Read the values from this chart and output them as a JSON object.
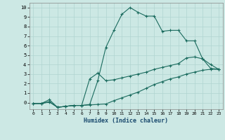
{
  "xlabel": "Humidex (Indice chaleur)",
  "background_color": "#cce8e4",
  "grid_color": "#b0d4d0",
  "line_color": "#1a6b5e",
  "xlim": [
    -0.5,
    23.5
  ],
  "ylim": [
    -0.7,
    10.5
  ],
  "xticks": [
    0,
    1,
    2,
    3,
    4,
    5,
    6,
    7,
    8,
    9,
    10,
    11,
    12,
    13,
    14,
    15,
    16,
    17,
    18,
    19,
    20,
    21,
    22,
    23
  ],
  "yticks": [
    0,
    1,
    2,
    3,
    4,
    5,
    6,
    7,
    8,
    9,
    10
  ],
  "line1_x": [
    0,
    1,
    2,
    3,
    4,
    5,
    6,
    7,
    8,
    9,
    10,
    11,
    12,
    13,
    14,
    15,
    16,
    17,
    18,
    19,
    20,
    21,
    22,
    23
  ],
  "line1_y": [
    -0.1,
    -0.1,
    0.3,
    -0.5,
    -0.4,
    -0.3,
    -0.3,
    -0.2,
    2.3,
    5.8,
    7.6,
    9.3,
    10.0,
    9.5,
    9.1,
    9.1,
    7.5,
    7.6,
    7.6,
    6.5,
    6.5,
    4.6,
    3.6,
    3.5
  ],
  "line2_x": [
    0,
    1,
    2,
    3,
    4,
    5,
    6,
    7,
    8,
    9,
    10,
    11,
    12,
    13,
    14,
    15,
    16,
    17,
    18,
    19,
    20,
    21,
    22,
    23
  ],
  "line2_y": [
    -0.1,
    -0.1,
    0.1,
    -0.5,
    -0.4,
    -0.3,
    -0.3,
    2.5,
    3.1,
    2.3,
    2.4,
    2.6,
    2.8,
    3.0,
    3.2,
    3.5,
    3.7,
    3.9,
    4.1,
    4.7,
    4.8,
    4.6,
    4.0,
    3.5
  ],
  "line3_x": [
    0,
    1,
    2,
    3,
    4,
    5,
    6,
    7,
    8,
    9,
    10,
    11,
    12,
    13,
    14,
    15,
    16,
    17,
    18,
    19,
    20,
    21,
    22,
    23
  ],
  "line3_y": [
    -0.1,
    -0.1,
    0.05,
    -0.5,
    -0.4,
    -0.3,
    -0.3,
    -0.25,
    -0.2,
    -0.15,
    0.2,
    0.5,
    0.8,
    1.1,
    1.5,
    1.9,
    2.2,
    2.5,
    2.7,
    3.0,
    3.2,
    3.4,
    3.5,
    3.5
  ]
}
